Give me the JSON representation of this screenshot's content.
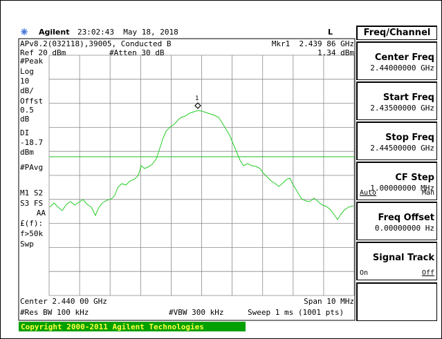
{
  "header": {
    "brand": "Agilent",
    "datetime": "23:02:43  May 18, 2018",
    "mode": "L"
  },
  "info": {
    "line1": "APv8.2(032118),39005, Conducted B",
    "marker": "Mkr1  2.439 86 GHz",
    "ref": "Ref 20 dBm",
    "atten": "#Atten 30 dB",
    "marker_level": "1.34 dBm"
  },
  "side_labels": [
    "#Peak",
    "Log",
    "10",
    "dB/",
    "Offst",
    "0.5",
    "dB",
    "DI",
    "-18.7",
    "dBm",
    "#PAvg",
    "M1 S2",
    "S3 FS",
    "AA",
    "£(f):",
    "f>50k",
    "Swp"
  ],
  "marker_label": "1",
  "footer": {
    "center": "Center 2.440 00 GHz",
    "span": "Span 10 MHz",
    "rbw": "#Res BW 100 kHz",
    "vbw": "#VBW 300 kHz",
    "sweep": "Sweep 1 ms (1001 pts)",
    "copyright": "Copyright 2000-2011 Agilent Technologies"
  },
  "menu": {
    "title": "Freq/Channel",
    "keys": [
      {
        "label": "Center Freq",
        "value": "2.44000000 GHz"
      },
      {
        "label": "Start Freq",
        "value": "2.43500000 GHz"
      },
      {
        "label": "Stop Freq",
        "value": "2.44500000 GHz"
      },
      {
        "label": "CF Step",
        "value": "1.00000000 MHz",
        "options": [
          "Auto",
          "Man"
        ]
      },
      {
        "label": "Freq Offset",
        "value": "0.00000000 Hz"
      },
      {
        "label": "Signal Track",
        "options": [
          "On",
          "Off"
        ]
      }
    ]
  }
}
